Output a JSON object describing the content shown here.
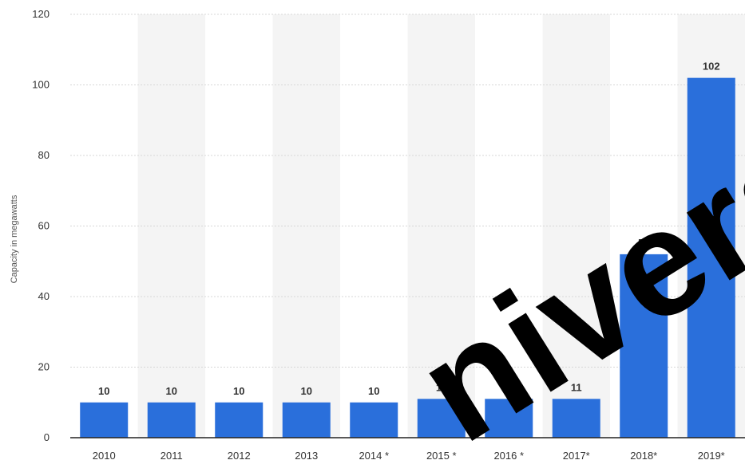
{
  "chart_data": {
    "type": "bar",
    "categories": [
      "2010",
      "2011",
      "2012",
      "2013",
      "2014 *",
      "2015 *",
      "2016 *",
      "2017*",
      "2018*",
      "2019*"
    ],
    "values": [
      10,
      10,
      10,
      10,
      10,
      11,
      11,
      11,
      52,
      102
    ],
    "data_labels": [
      "10",
      "10",
      "10",
      "10",
      "10",
      "11",
      "11",
      "11",
      "52",
      "102"
    ],
    "ylabel": "Capacity in megawatts",
    "xlabel": "",
    "ylim": [
      0,
      120
    ],
    "yticks": [
      0,
      20,
      40,
      60,
      80,
      100,
      120
    ],
    "grid": true,
    "bar_color": "#2a6fdb",
    "band_color": "#f4f4f4",
    "watermark": "niversi"
  }
}
